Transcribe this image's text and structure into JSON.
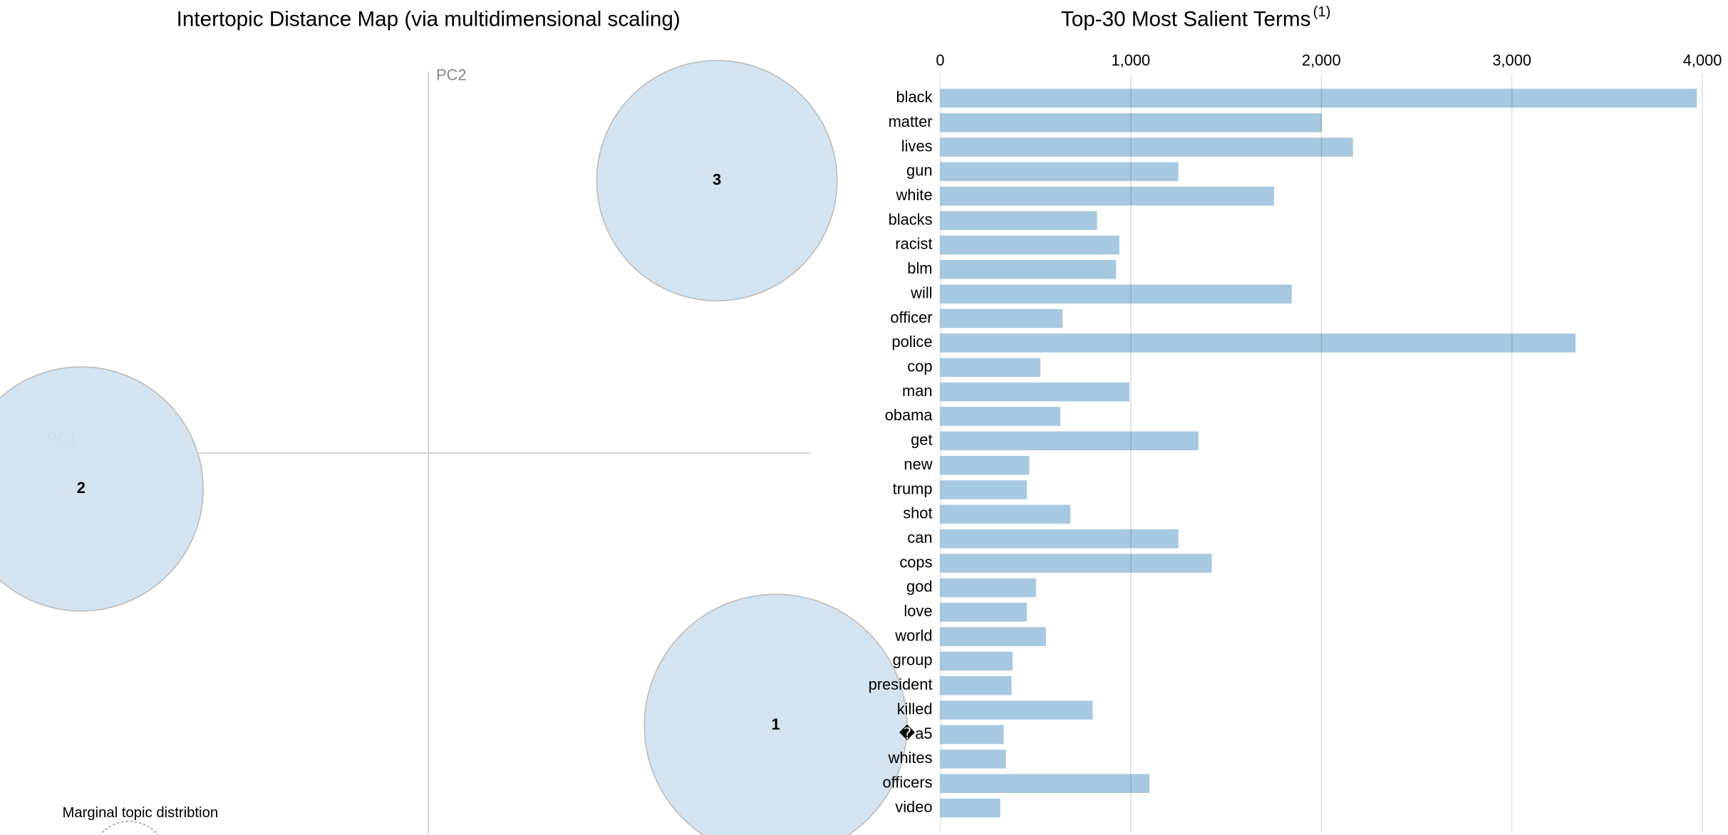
{
  "chart_data": [
    {
      "type": "bubble",
      "title": "Intertopic Distance Map (via multidimensional scaling)",
      "xlabel": "PC1",
      "ylabel": "PC2",
      "categories": [
        "1",
        "2",
        "3"
      ],
      "x": [
        0.455,
        -0.455,
        0.378
      ],
      "values": [
        -0.357,
        -0.047,
        0.357
      ],
      "sizes": [
        37,
        32,
        31
      ],
      "color": "#d1e2ee",
      "xlim": [
        -0.5,
        0.5
      ],
      "ylim": [
        -0.5,
        0.5
      ],
      "legend_title": "Marginal topic distribtion"
    },
    {
      "type": "bar",
      "orientation": "horizontal",
      "title": "Top-30 Most Salient Terms",
      "title_note": "(1)",
      "categories": [
        "black",
        "matter",
        "lives",
        "gun",
        "white",
        "blacks",
        "racist",
        "blm",
        "will",
        "officer",
        "police",
        "cop",
        "man",
        "obama",
        "get",
        "new",
        "trump",
        "shot",
        "can",
        "cops",
        "god",
        "love",
        "world",
        "group",
        "president",
        "killed",
        "�a5",
        "whites",
        "officers",
        "video"
      ],
      "values": [
        3971,
        2003,
        2166,
        1250,
        1752,
        823,
        940,
        923,
        1845,
        642,
        3334,
        526,
        993,
        631,
        1355,
        467,
        455,
        683,
        1250,
        1425,
        502,
        455,
        555,
        380,
        374,
        800,
        333,
        345,
        1098,
        315
      ],
      "color": "#a6c8e0",
      "xlim": [
        0,
        4000
      ],
      "xticks": [
        0,
        {
          "value": 1000,
          "label": "1,000"
        },
        {
          "value": 2000,
          "label": "2,000"
        },
        {
          "value": 3000,
          "label": "3,000"
        },
        {
          "value": 4000,
          "label": "4,000"
        }
      ],
      "grid": true
    }
  ]
}
